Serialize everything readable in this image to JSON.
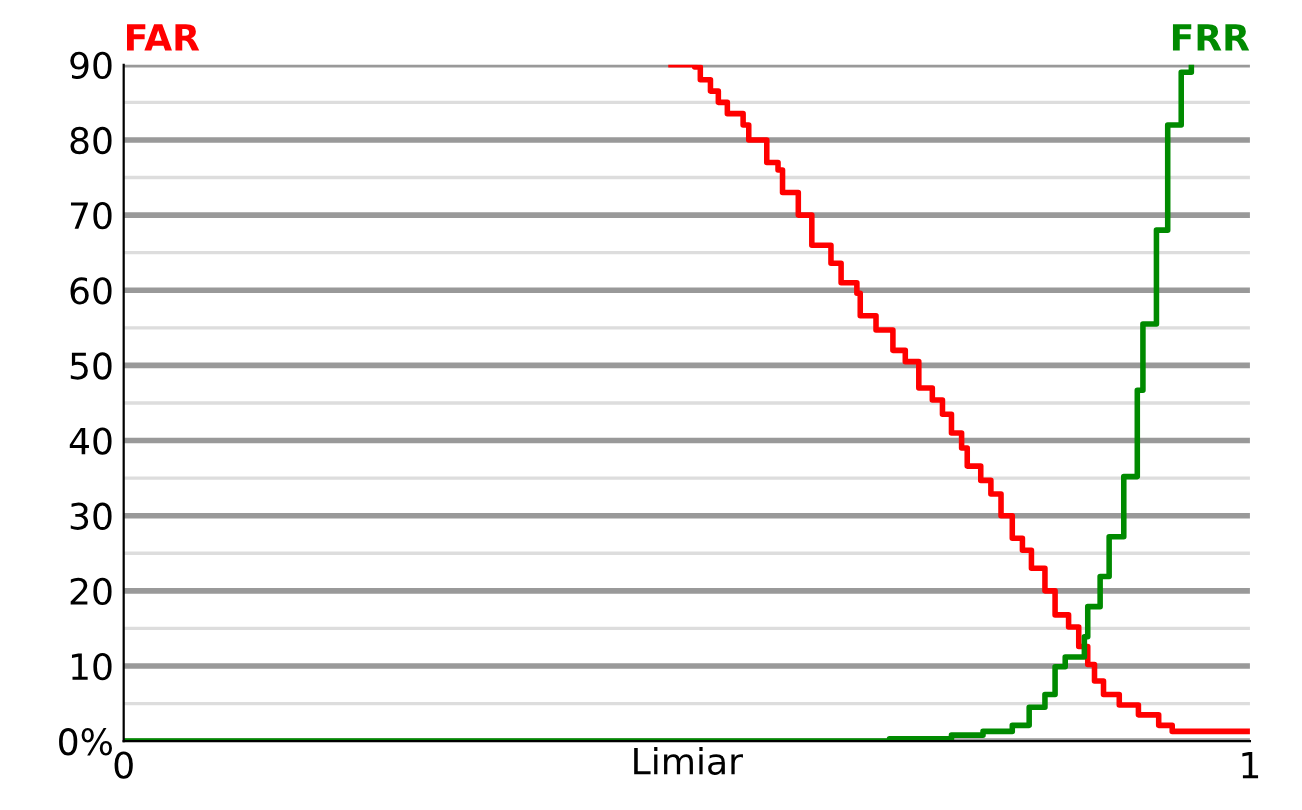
{
  "chart_data": {
    "type": "step",
    "xlabel": "Limiar",
    "xlim": [
      0,
      1
    ],
    "xticks": [
      0,
      1
    ],
    "ylim": [
      0,
      90
    ],
    "yticks": [
      {
        "value": 0,
        "label": "0%"
      },
      {
        "value": 5,
        "label": null
      },
      10,
      {
        "value": 15,
        "label": null
      },
      20,
      {
        "value": 25,
        "label": null
      },
      30,
      {
        "value": 35,
        "label": null
      },
      40,
      {
        "value": 45,
        "label": null
      },
      50,
      {
        "value": 55,
        "label": null
      },
      60,
      {
        "value": 65,
        "label": null
      },
      70,
      {
        "value": 75,
        "label": null
      },
      80,
      {
        "value": 85,
        "label": null
      },
      90
    ],
    "grid": "y",
    "legend": false,
    "line_style": "solid",
    "marker": "none",
    "series": [
      {
        "name": "FAR",
        "color": "#ff0000",
        "x": [
          0.486,
          0.507,
          0.512,
          0.521,
          0.528,
          0.536,
          0.55,
          0.555,
          0.571,
          0.581,
          0.585,
          0.599,
          0.611,
          0.628,
          0.637,
          0.651,
          0.654,
          0.668,
          0.683,
          0.694,
          0.706,
          0.718,
          0.727,
          0.735,
          0.744,
          0.749,
          0.761,
          0.77,
          0.779,
          0.789,
          0.798,
          0.806,
          0.818,
          0.827,
          0.839,
          0.848,
          0.856,
          0.862,
          0.87,
          0.884,
          0.901,
          0.919,
          0.931,
          1.0
        ],
        "values": [
          90,
          89.7,
          88,
          86.5,
          85,
          83.5,
          82,
          80,
          77,
          76,
          73,
          70,
          66,
          63.6,
          61,
          59.6,
          56.6,
          54.7,
          52,
          50.5,
          47,
          45.4,
          43.5,
          41,
          39,
          36.6,
          34.7,
          32.9,
          30,
          27,
          25.4,
          23,
          20,
          16.8,
          15.2,
          12.6,
          10.2,
          8,
          6.2,
          4.8,
          3.5,
          2.1,
          1.3,
          1.3
        ]
      },
      {
        "name": "FRR",
        "color": "#008a00",
        "x": [
          0,
          0.68,
          0.735,
          0.763,
          0.789,
          0.804,
          0.818,
          0.827,
          0.836,
          0.853,
          0.856,
          0.867,
          0.875,
          0.888,
          0.9,
          0.905,
          0.917,
          0.927,
          0.939,
          0.948
        ],
        "values": [
          0,
          0.3,
          0.8,
          1.3,
          2.1,
          4.5,
          6.2,
          9.9,
          11.2,
          13.9,
          17.9,
          21.9,
          27.2,
          35.2,
          46.7,
          55.5,
          68,
          82,
          89,
          90
        ]
      }
    ]
  }
}
